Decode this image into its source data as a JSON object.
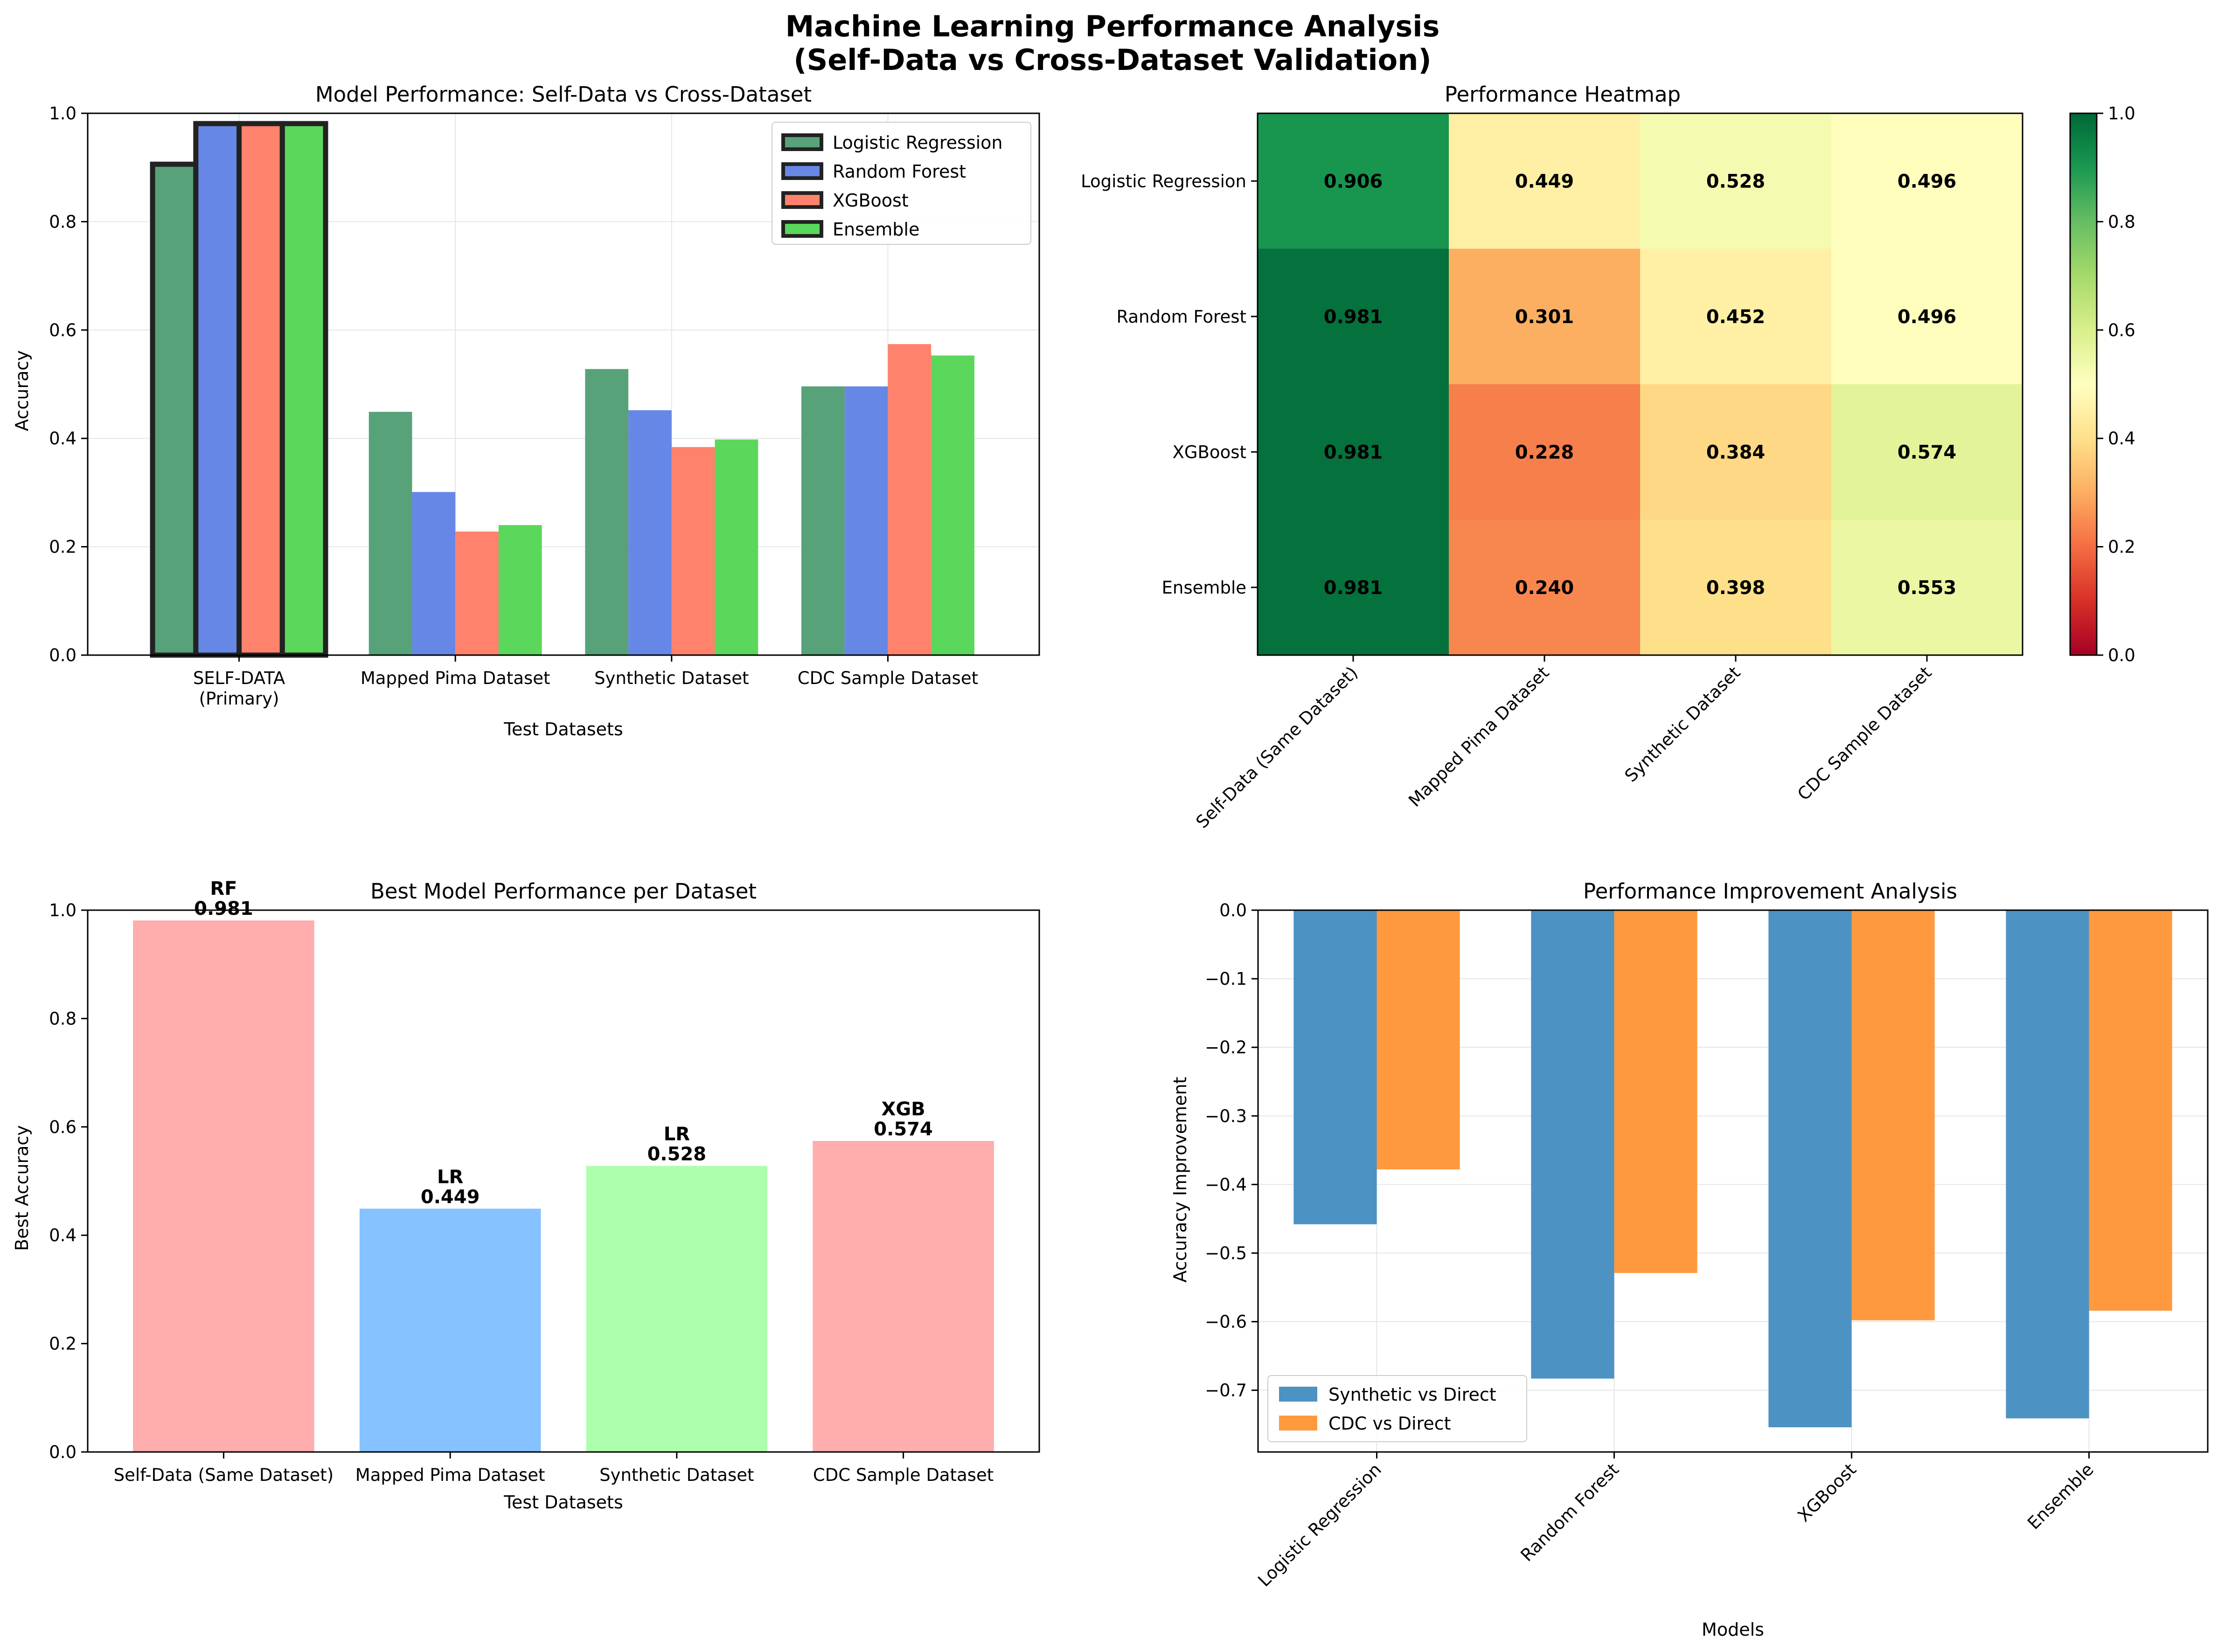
{
  "figure": {
    "title_line1": "Machine Learning Performance Analysis",
    "title_line2": "(Self-Data vs Cross-Dataset Validation)"
  },
  "colors": {
    "Logistic Regression": "#2e8b57",
    "Random Forest": "#4169e1",
    "XGBoost": "#ff6347",
    "Ensemble": "#32cd32",
    "synthetic_vs_direct": "#1f77b4",
    "cdc_vs_direct": "#ff7f0e",
    "best_bar_colors": [
      "#ff9999",
      "#66b3ff",
      "#99ff99",
      "#ff9999"
    ]
  },
  "chart_data": [
    {
      "type": "bar",
      "title": "Model Performance: Self-Data vs Cross-Dataset",
      "xlabel": "Test Datasets",
      "ylabel": "Accuracy",
      "ylim": [
        0,
        1.0
      ],
      "yticks": [
        "0.0",
        "0.2",
        "0.4",
        "0.6",
        "0.8",
        "1.0"
      ],
      "categories": [
        "SELF-DATA\n(Primary)",
        "Mapped Pima Dataset",
        "Synthetic Dataset",
        "CDC Sample Dataset"
      ],
      "series": [
        {
          "name": "Logistic Regression",
          "values": [
            0.906,
            0.449,
            0.528,
            0.496
          ]
        },
        {
          "name": "Random Forest",
          "values": [
            0.981,
            0.301,
            0.452,
            0.496
          ]
        },
        {
          "name": "XGBoost",
          "values": [
            0.981,
            0.228,
            0.384,
            0.574
          ]
        },
        {
          "name": "Ensemble",
          "values": [
            0.981,
            0.24,
            0.398,
            0.553
          ]
        }
      ],
      "highlighted_category": "SELF-DATA\n(Primary)",
      "grid": true,
      "legend": "top-right"
    },
    {
      "type": "heatmap",
      "title": "Performance Heatmap",
      "rows": [
        "Logistic Regression",
        "Random Forest",
        "XGBoost",
        "Ensemble"
      ],
      "columns": [
        "Self-Data (Same Dataset)",
        "Mapped Pima Dataset",
        "Synthetic Dataset",
        "CDC Sample Dataset"
      ],
      "values": [
        [
          0.906,
          0.449,
          0.528,
          0.496
        ],
        [
          0.981,
          0.301,
          0.452,
          0.496
        ],
        [
          0.981,
          0.228,
          0.384,
          0.574
        ],
        [
          0.981,
          0.24,
          0.398,
          0.553
        ]
      ],
      "cell_labels": [
        [
          "0.906",
          "0.449",
          "0.528",
          "0.496"
        ],
        [
          "0.981",
          "0.301",
          "0.452",
          "0.496"
        ],
        [
          "0.981",
          "0.228",
          "0.384",
          "0.574"
        ],
        [
          "0.981",
          "0.240",
          "0.398",
          "0.553"
        ]
      ],
      "colormap": "RdYlGn",
      "vrange": [
        0,
        1.0
      ],
      "colorbar_ticks": [
        "0.0",
        "0.2",
        "0.4",
        "0.6",
        "0.8",
        "1.0"
      ]
    },
    {
      "type": "bar",
      "title": "Best Model Performance per Dataset",
      "xlabel": "Test Datasets",
      "ylabel": "Best Accuracy",
      "ylim": [
        0,
        1.0
      ],
      "yticks": [
        "0.0",
        "0.2",
        "0.4",
        "0.6",
        "0.8",
        "1.0"
      ],
      "categories": [
        "Self-Data (Same Dataset)",
        "Mapped Pima Dataset",
        "Synthetic Dataset",
        "CDC Sample Dataset"
      ],
      "values": [
        0.981,
        0.449,
        0.528,
        0.574
      ],
      "bar_models": [
        "RF",
        "LR",
        "LR",
        "XGB"
      ],
      "bar_value_labels": [
        "0.981",
        "0.449",
        "0.528",
        "0.574"
      ],
      "grid": false
    },
    {
      "type": "bar",
      "title": "Performance Improvement Analysis",
      "xlabel": "Models",
      "ylabel": "Accuracy Improvement",
      "ylim": [
        -0.79,
        0.0
      ],
      "yticks": [
        "0.0",
        "−0.1",
        "−0.2",
        "−0.3",
        "−0.4",
        "−0.5",
        "−0.6",
        "−0.7"
      ],
      "categories": [
        "Logistic Regression",
        "Random Forest",
        "XGBoost",
        "Ensemble"
      ],
      "series": [
        {
          "name": "Synthetic vs Direct",
          "values": [
            -0.458,
            -0.683,
            -0.754,
            -0.741
          ]
        },
        {
          "name": "CDC vs Direct",
          "values": [
            -0.378,
            -0.529,
            -0.598,
            -0.584
          ]
        }
      ],
      "grid": true,
      "legend": "bottom-left"
    }
  ]
}
